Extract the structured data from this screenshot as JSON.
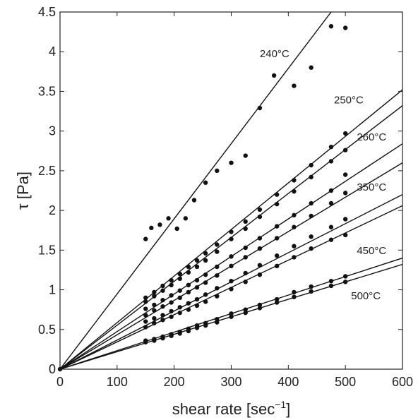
{
  "chart_data": {
    "type": "scatter",
    "title": "",
    "xlabel": "shear rate [sec",
    "xlabel_sup": "−1",
    "xlabel_close": "]",
    "ylabel": "τ [Pa]",
    "xlim": [
      0,
      600
    ],
    "ylim": [
      0,
      4.5
    ],
    "grid": false,
    "xticks": [
      0,
      100,
      200,
      300,
      400,
      500,
      600
    ],
    "xtick_labels": [
      "0",
      "100",
      "200",
      "300",
      "400",
      "500",
      "600"
    ],
    "yticks": [
      0,
      0.5,
      1,
      1.5,
      2,
      2.5,
      3,
      3.5,
      4,
      4.5
    ],
    "ytick_labels": [
      "0",
      "0.5",
      "1",
      "1.5",
      "2",
      "2.5",
      "3",
      "3.5",
      "4",
      "4.5"
    ],
    "annotations": [
      {
        "text": "240°C",
        "x": 350,
        "y": 3.93
      },
      {
        "text": "250°C",
        "x": 480,
        "y": 3.35
      },
      {
        "text": "260°C",
        "x": 520,
        "y": 2.88
      },
      {
        "text": "350°C",
        "x": 520,
        "y": 2.25
      },
      {
        "text": "450°C",
        "x": 520,
        "y": 1.45
      },
      {
        "text": "500°C",
        "x": 510,
        "y": 0.88
      }
    ],
    "fit_lines": [
      {
        "x": [
          0,
          475
        ],
        "y": [
          0,
          4.5
        ]
      },
      {
        "x": [
          0,
          600
        ],
        "y": [
          0,
          3.52
        ]
      },
      {
        "x": [
          0,
          600
        ],
        "y": [
          0,
          3.32
        ]
      },
      {
        "x": [
          0,
          600
        ],
        "y": [
          0,
          2.84
        ]
      },
      {
        "x": [
          0,
          600
        ],
        "y": [
          0,
          2.6
        ]
      },
      {
        "x": [
          0,
          600
        ],
        "y": [
          0,
          2.2
        ]
      },
      {
        "x": [
          0,
          600
        ],
        "y": [
          0,
          2.06
        ]
      },
      {
        "x": [
          0,
          600
        ],
        "y": [
          0,
          1.4
        ]
      },
      {
        "x": [
          0,
          600
        ],
        "y": [
          0,
          1.32
        ]
      }
    ],
    "series": [
      {
        "x": [
          0,
          150,
          160,
          175,
          190,
          205,
          220,
          235,
          255,
          275,
          300,
          325,
          350,
          375,
          410,
          440,
          475,
          500
        ],
        "y": [
          0,
          1.64,
          1.78,
          1.82,
          1.9,
          1.77,
          1.9,
          2.13,
          2.35,
          2.5,
          2.6,
          2.69,
          3.29,
          3.7,
          3.57,
          3.8,
          4.32,
          4.3
        ]
      },
      {
        "x": [
          150,
          165,
          180,
          195,
          210,
          225,
          240,
          255,
          275,
          300,
          325,
          350,
          380,
          410,
          440,
          475,
          500
        ],
        "y": [
          0.9,
          0.97,
          1.05,
          1.12,
          1.2,
          1.29,
          1.37,
          1.46,
          1.57,
          1.73,
          1.86,
          2.01,
          2.2,
          2.38,
          2.57,
          2.8,
          2.97
        ]
      },
      {
        "x": [
          150,
          165,
          180,
          195,
          210,
          225,
          240,
          255,
          275,
          300,
          325,
          350,
          380,
          410,
          440,
          475,
          500
        ],
        "y": [
          0.85,
          0.92,
          0.99,
          1.06,
          1.14,
          1.22,
          1.29,
          1.37,
          1.48,
          1.64,
          1.77,
          1.92,
          2.08,
          2.24,
          2.42,
          2.62,
          2.76
        ]
      },
      {
        "x": [
          150,
          165,
          180,
          195,
          210,
          225,
          240,
          255,
          275,
          300,
          325,
          350,
          380,
          410,
          440,
          475,
          500
        ],
        "y": [
          0.76,
          0.81,
          0.87,
          0.93,
          0.99,
          1.06,
          1.12,
          1.19,
          1.29,
          1.42,
          1.53,
          1.65,
          1.8,
          1.94,
          2.09,
          2.25,
          2.45
        ]
      },
      {
        "x": [
          150,
          165,
          180,
          195,
          210,
          225,
          240,
          255,
          275,
          300,
          325,
          350,
          380,
          410,
          440,
          475,
          500
        ],
        "y": [
          0.68,
          0.74,
          0.79,
          0.84,
          0.9,
          0.97,
          1.03,
          1.09,
          1.18,
          1.3,
          1.41,
          1.52,
          1.65,
          1.79,
          1.93,
          2.09,
          2.22
        ]
      },
      {
        "x": [
          150,
          165,
          180,
          195,
          210,
          225,
          240,
          255,
          275,
          300,
          325,
          350,
          380,
          410,
          440,
          475,
          500
        ],
        "y": [
          0.6,
          0.64,
          0.68,
          0.73,
          0.78,
          0.83,
          0.88,
          0.94,
          1.02,
          1.11,
          1.21,
          1.31,
          1.43,
          1.55,
          1.67,
          1.79,
          1.89
        ]
      },
      {
        "x": [
          150,
          165,
          180,
          195,
          210,
          225,
          240,
          255,
          275,
          300,
          325,
          350,
          380,
          410,
          440,
          475,
          500
        ],
        "y": [
          0.53,
          0.58,
          0.62,
          0.66,
          0.71,
          0.75,
          0.8,
          0.85,
          0.92,
          1.01,
          1.1,
          1.19,
          1.3,
          1.41,
          1.52,
          1.63,
          1.69
        ]
      },
      {
        "x": [
          150,
          165,
          180,
          195,
          210,
          225,
          240,
          255,
          275,
          300,
          325,
          350,
          380,
          410,
          440,
          475,
          500
        ],
        "y": [
          0.36,
          0.38,
          0.41,
          0.44,
          0.47,
          0.51,
          0.55,
          0.58,
          0.63,
          0.7,
          0.75,
          0.81,
          0.88,
          0.97,
          1.04,
          1.11,
          1.17
        ]
      },
      {
        "x": [
          150,
          165,
          180,
          195,
          210,
          225,
          240,
          255,
          275,
          300,
          325,
          350,
          380,
          410,
          440,
          475,
          500
        ],
        "y": [
          0.34,
          0.36,
          0.39,
          0.42,
          0.45,
          0.48,
          0.52,
          0.55,
          0.59,
          0.66,
          0.71,
          0.77,
          0.84,
          0.91,
          0.98,
          1.05,
          1.1
        ]
      }
    ]
  }
}
